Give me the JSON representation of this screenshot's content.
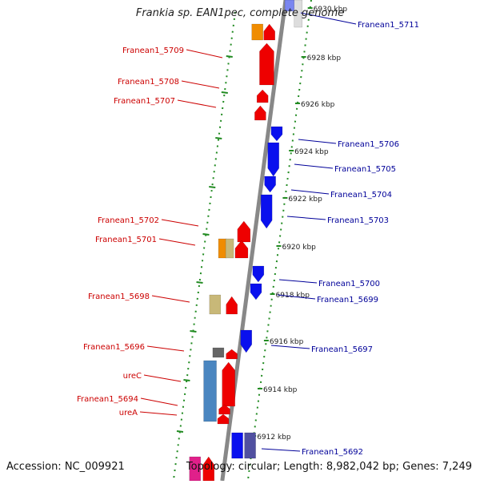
{
  "title": "Frankia sp. EAN1pec, complete genome",
  "accession": "Accession: NC_009921",
  "topology": "Topology: circular; Length: 8,982,042 bp; Genes: 7,249",
  "colors": {
    "backbone": "#888888",
    "dots": "#228b22",
    "left_label": "#cc0000",
    "right_label": "#000099",
    "kbp_text": "#222222"
  },
  "kbp_ticks": [
    "6930 kbp",
    "6928 kbp",
    "6926 kbp",
    "6924 kbp",
    "6922 kbp",
    "6920 kbp",
    "6918 kbp",
    "6916 kbp",
    "6914 kbp",
    "6912 kbp"
  ],
  "left_labels": [
    "Franean1_5709",
    "Franean1_5708",
    "Franean1_5707",
    "Franean1_5702",
    "Franean1_5701",
    "Franean1_5698",
    "Franean1_5696",
    "ureC",
    "Franean1_5694",
    "ureA"
  ],
  "right_labels": [
    "Franean1_5711",
    "Franean1_5706",
    "Franean1_5705",
    "Franean1_5704",
    "Franean1_5703",
    "Franean1_5700",
    "Franean1_5699",
    "Franean1_5697",
    "Franean1_5692"
  ]
}
